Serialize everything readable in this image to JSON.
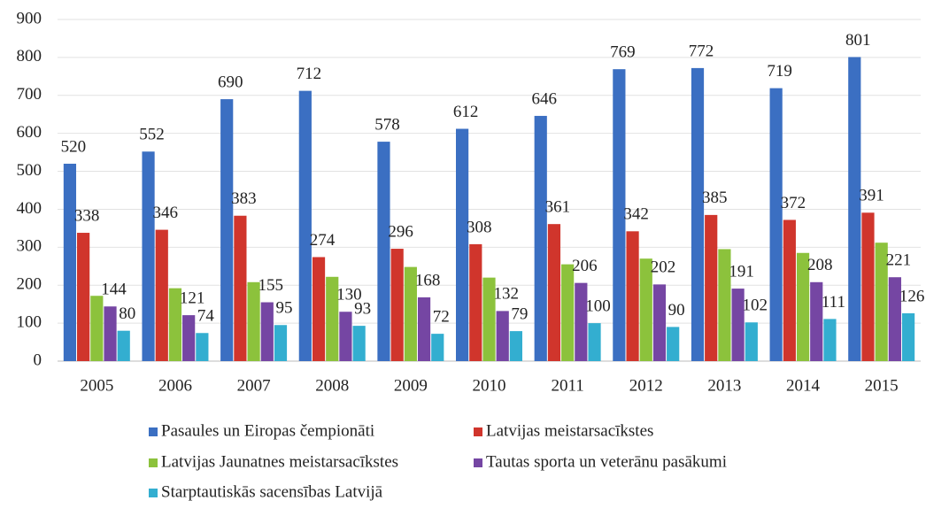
{
  "chart_data": {
    "type": "bar",
    "categories": [
      "2005",
      "2006",
      "2007",
      "2008",
      "2009",
      "2010",
      "2011",
      "2012",
      "2013",
      "2014",
      "2015"
    ],
    "series": [
      {
        "name": "Pasaules un Eiropas čempionāti",
        "color": "#3b6fc2",
        "show_labels": true,
        "values": [
          520,
          552,
          690,
          712,
          578,
          612,
          646,
          769,
          772,
          719,
          801
        ]
      },
      {
        "name": "Latvijas meistarsacīkstes",
        "color": "#d0352c",
        "show_labels": true,
        "values": [
          338,
          346,
          383,
          274,
          296,
          308,
          361,
          342,
          385,
          372,
          391
        ]
      },
      {
        "name": "Latvijas Jaunatnes meistarsacīkstes",
        "color": "#8cc23c",
        "show_labels": false,
        "values": [
          172,
          192,
          208,
          222,
          248,
          220,
          255,
          270,
          295,
          285,
          312
        ]
      },
      {
        "name": "Tautas sporta un veterānu pasākumi",
        "color": "#7546a3",
        "show_labels": true,
        "values": [
          144,
          121,
          155,
          130,
          168,
          132,
          206,
          202,
          191,
          208,
          221
        ]
      },
      {
        "name": "Starptautiskās sacensības Latvijā",
        "color": "#33aed0",
        "show_labels": true,
        "values": [
          80,
          74,
          95,
          93,
          72,
          79,
          100,
          90,
          102,
          111,
          126
        ]
      }
    ],
    "ylim": [
      0,
      900
    ],
    "yticks": [
      0,
      100,
      200,
      300,
      400,
      500,
      600,
      700,
      800,
      900
    ],
    "grid": true,
    "legend": "bottom"
  }
}
